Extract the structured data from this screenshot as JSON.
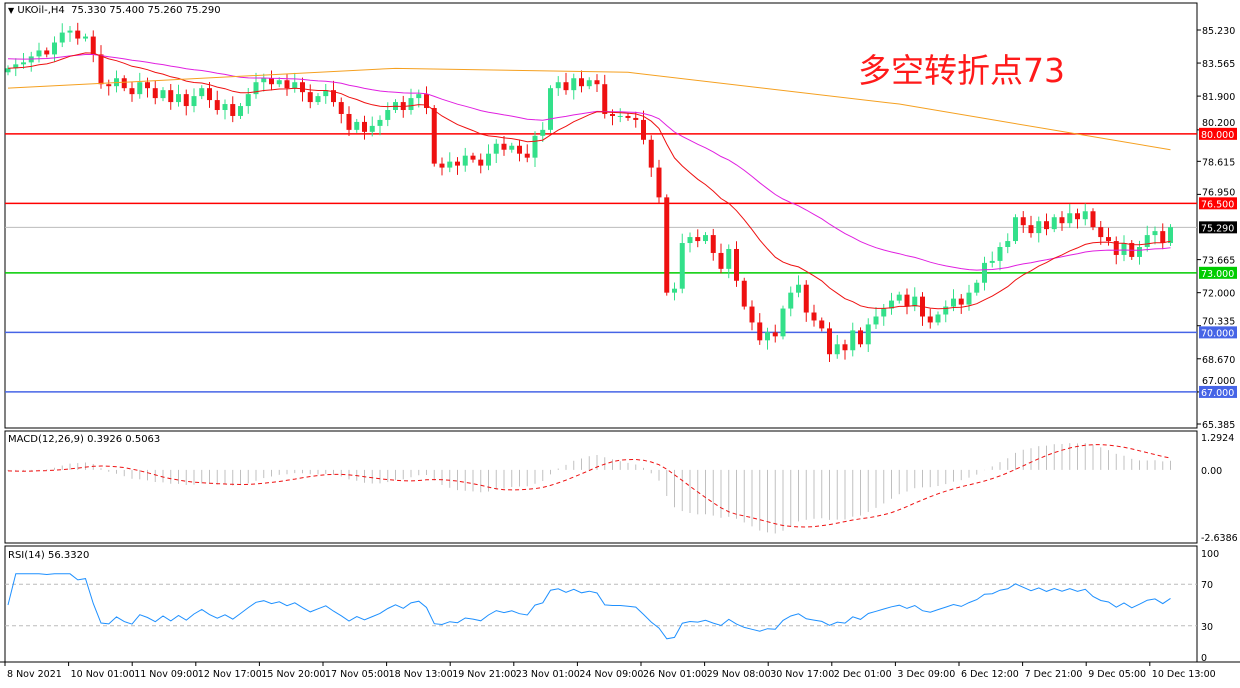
{
  "header": {
    "symbol": "UKOil-,H4",
    "ohlc": "75.330 75.400 75.260 75.290",
    "menu_icon": "triangle-down-icon"
  },
  "annotation": "多空转折点73",
  "price_axis": {
    "ticks": [
      "85.230",
      "83.565",
      "81.900",
      "80.200",
      "78.615",
      "76.950",
      "75.290",
      "73.665",
      "72.000",
      "70.335",
      "68.670",
      "67.000",
      "65.385"
    ],
    "tick_values": [
      85.23,
      83.565,
      81.9,
      78.615,
      76.95,
      73.665,
      72.0,
      70.335,
      68.67,
      65.385
    ],
    "min": 65.385,
    "max": 85.23
  },
  "levels": [
    {
      "value": 80.0,
      "label": "80.000",
      "color": "#ff0000"
    },
    {
      "value": 76.5,
      "label": "76.500",
      "color": "#ff0000"
    },
    {
      "value": 73.0,
      "label": "73.000",
      "color": "#00cc00"
    },
    {
      "value": 70.0,
      "label": "70.000",
      "color": "#4664e6"
    },
    {
      "value": 67.0,
      "label": "67.000",
      "color": "#4664e6"
    }
  ],
  "current_price": {
    "value": 75.29,
    "label": "75.290"
  },
  "colors": {
    "bull": "#33e08a",
    "bear": "#ee1111",
    "ma_fast": "#ee1111",
    "ma_mid": "#e020e0",
    "ma_slow": "#f5a020",
    "macd_hist": "#c0c0c0",
    "macd_signal": "#ee1111",
    "rsi": "#1e90ff"
  },
  "closes": [
    83.3,
    83.5,
    83.6,
    83.9,
    84.2,
    84.0,
    84.6,
    85.1,
    85.2,
    84.8,
    84.9,
    84.0,
    82.5,
    82.4,
    82.8,
    82.3,
    82.0,
    82.6,
    82.3,
    81.8,
    82.2,
    81.6,
    82.0,
    81.4,
    81.9,
    82.3,
    81.7,
    81.2,
    81.5,
    80.9,
    81.4,
    82.0,
    82.6,
    82.8,
    82.5,
    82.7,
    82.3,
    82.6,
    82.1,
    81.6,
    81.9,
    82.2,
    81.6,
    81.0,
    80.2,
    80.6,
    80.1,
    80.4,
    80.7,
    81.2,
    81.6,
    81.2,
    81.8,
    82.0,
    81.3,
    78.5,
    78.3,
    78.6,
    78.4,
    78.9,
    78.7,
    78.4,
    79.0,
    79.5,
    79.2,
    79.4,
    79.0,
    78.8,
    79.9,
    80.2,
    82.3,
    82.6,
    82.2,
    82.8,
    82.4,
    82.7,
    82.5,
    81.0,
    80.9,
    80.9,
    80.8,
    80.7,
    79.7,
    78.3,
    76.8,
    72.0,
    72.2,
    74.5,
    74.8,
    74.6,
    74.9,
    74.0,
    73.2,
    74.2,
    72.6,
    71.3,
    70.5,
    69.6,
    70.0,
    69.8,
    71.2,
    72.0,
    72.4,
    71.0,
    70.6,
    70.2,
    68.9,
    69.4,
    69.1,
    70.1,
    69.4,
    70.4,
    70.8,
    71.2,
    71.6,
    71.9,
    71.3,
    71.8,
    70.8,
    70.5,
    70.9,
    71.3,
    71.7,
    71.4,
    72.0,
    72.5,
    73.5,
    73.6,
    74.3,
    74.6,
    75.8,
    75.4,
    75.0,
    75.6,
    75.2,
    75.8,
    75.5,
    76.0,
    75.7,
    76.1,
    75.3,
    74.8,
    74.6,
    73.9,
    74.5,
    73.8,
    74.3,
    74.9,
    75.1,
    74.5,
    75.3
  ],
  "ma_slow_points": [
    [
      0,
      82.3
    ],
    [
      50,
      83.3
    ],
    [
      80,
      83.1
    ],
    [
      115,
      81.5
    ],
    [
      150,
      79.2
    ]
  ],
  "macd": {
    "title": "MACD(12,26,9) 0.3926 0.5063",
    "ticks": [
      "1.2924",
      "0.00",
      "-2.6386"
    ],
    "max": 1.2924,
    "min": -2.6386
  },
  "rsi": {
    "title": "RSI(14) 56.3320",
    "ticks": [
      "100",
      "70",
      "30",
      "0"
    ],
    "levels": [
      70,
      30
    ]
  },
  "time_axis": [
    "8 Nov 2021",
    "10 Nov 01:00",
    "11 Nov 09:00",
    "12 Nov 17:00",
    "15 Nov 20:00",
    "17 Nov 05:00",
    "18 Nov 13:00",
    "19 Nov 21:00",
    "23 Nov 01:00",
    "24 Nov 09:00",
    "26 Nov 01:00",
    "29 Nov 08:00",
    "30 Nov 17:00",
    "2 Dec 01:00",
    "3 Dec 09:00",
    "6 Dec 12:00",
    "7 Dec 21:00",
    "9 Dec 05:00",
    "10 Dec 13:00"
  ]
}
